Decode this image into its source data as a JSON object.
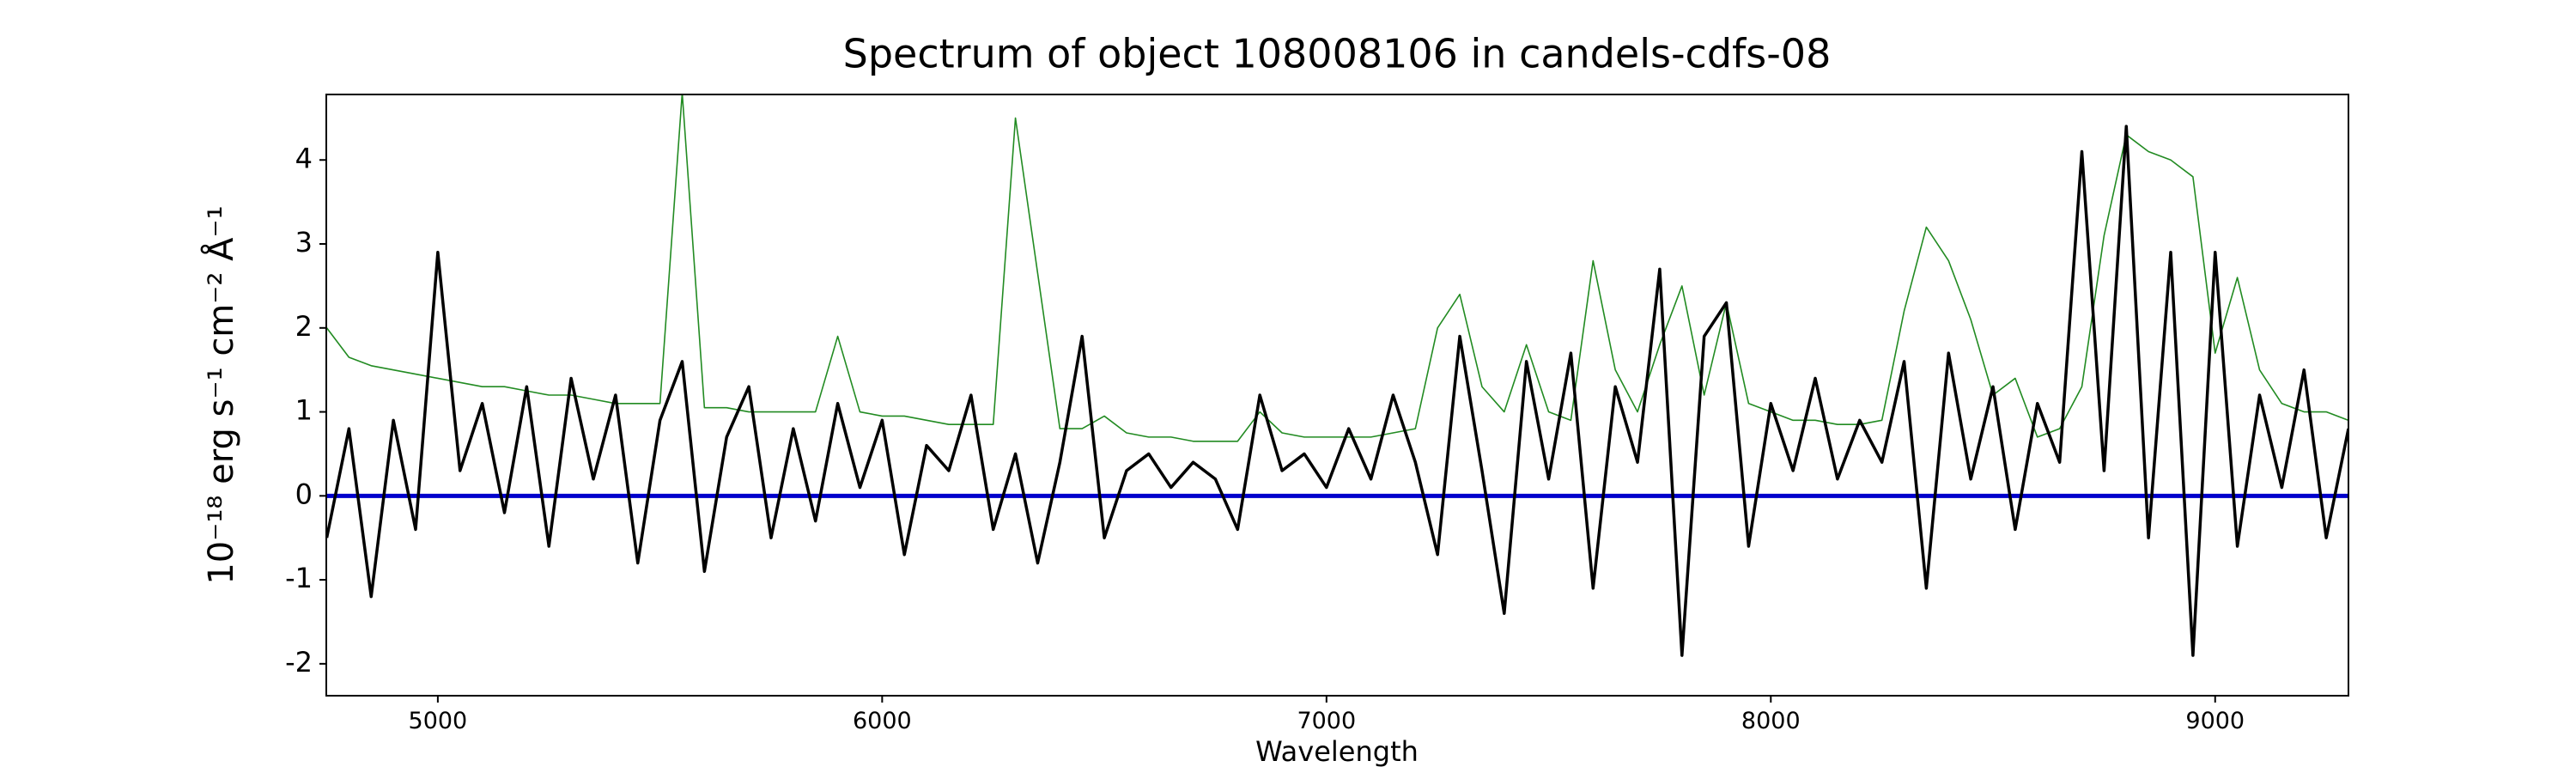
{
  "chart_data": {
    "type": "line",
    "title": "Spectrum of object 108008106 in candels-cdfs-08",
    "x_label": "Wavelength",
    "y_label": "10⁻¹⁸ erg s⁻¹ cm⁻² Å⁻¹",
    "xlim": [
      4749,
      9300
    ],
    "ylim": [
      -2.38,
      4.78
    ],
    "xticks": [
      5000,
      6000,
      7000,
      8000,
      9000
    ],
    "yticks": [
      -2,
      -1,
      0,
      1,
      2,
      3,
      4
    ],
    "x": [
      4750,
      4800,
      4850,
      4900,
      4950,
      5000,
      5050,
      5100,
      5150,
      5200,
      5250,
      5300,
      5350,
      5400,
      5450,
      5500,
      5550,
      5600,
      5650,
      5700,
      5750,
      5800,
      5850,
      5900,
      5950,
      6000,
      6050,
      6100,
      6150,
      6200,
      6250,
      6300,
      6350,
      6400,
      6450,
      6500,
      6550,
      6600,
      6650,
      6700,
      6750,
      6800,
      6850,
      6900,
      6950,
      7000,
      7050,
      7100,
      7150,
      7200,
      7250,
      7300,
      7350,
      7400,
      7450,
      7500,
      7550,
      7600,
      7650,
      7700,
      7750,
      7800,
      7850,
      7900,
      7950,
      8000,
      8050,
      8100,
      8150,
      8200,
      8250,
      8300,
      8350,
      8400,
      8450,
      8500,
      8550,
      8600,
      8650,
      8700,
      8750,
      8800,
      8850,
      8900,
      8950,
      9000,
      9050,
      9100,
      9150,
      9200,
      9250,
      9300
    ],
    "series": [
      {
        "color": "#228b22",
        "width": 1.6,
        "values": [
          2.0,
          1.65,
          1.55,
          1.5,
          1.45,
          1.4,
          1.35,
          1.3,
          1.3,
          1.25,
          1.2,
          1.2,
          1.15,
          1.1,
          1.1,
          1.1,
          4.8,
          1.05,
          1.05,
          1.0,
          1.0,
          1.0,
          1.0,
          1.9,
          1.0,
          0.95,
          0.95,
          0.9,
          0.85,
          0.85,
          0.85,
          4.5,
          2.65,
          0.8,
          0.8,
          0.95,
          0.75,
          0.7,
          0.7,
          0.65,
          0.65,
          0.65,
          1.0,
          0.75,
          0.7,
          0.7,
          0.7,
          0.7,
          0.75,
          0.8,
          2.0,
          2.4,
          1.3,
          1.0,
          1.8,
          1.0,
          0.9,
          2.8,
          1.5,
          1.0,
          1.8,
          2.5,
          1.2,
          2.3,
          1.1,
          1.0,
          0.9,
          0.9,
          0.85,
          0.85,
          0.9,
          2.2,
          3.2,
          2.8,
          2.1,
          1.2,
          1.4,
          0.7,
          0.8,
          1.3,
          3.1,
          4.3,
          4.1,
          4.0,
          3.8,
          1.7,
          2.6,
          1.5,
          1.1,
          1.0,
          1.0,
          0.9
        ]
      },
      {
        "color": "#0000cc",
        "width": 5,
        "values": [
          0,
          0,
          0,
          0,
          0,
          0,
          0,
          0,
          0,
          0,
          0,
          0,
          0,
          0,
          0,
          0,
          0,
          0,
          0,
          0,
          0,
          0,
          0,
          0,
          0,
          0,
          0,
          0,
          0,
          0,
          0,
          0,
          0,
          0,
          0,
          0,
          0,
          0,
          0,
          0,
          0,
          0,
          0,
          0,
          0,
          0,
          0,
          0,
          0,
          0,
          0,
          0,
          0,
          0,
          0,
          0,
          0,
          0,
          0,
          0,
          0,
          0,
          0,
          0,
          0,
          0,
          0,
          0,
          0,
          0,
          0,
          0,
          0,
          0,
          0,
          0,
          0,
          0,
          0,
          0,
          0,
          0,
          0,
          0,
          0,
          0,
          0,
          0,
          0,
          0,
          0,
          0
        ]
      },
      {
        "color": "#000000",
        "width": 3.5,
        "values": [
          -0.5,
          0.8,
          -1.2,
          0.9,
          -0.4,
          2.9,
          0.3,
          1.1,
          -0.2,
          1.3,
          -0.6,
          1.4,
          0.2,
          1.2,
          -0.8,
          0.9,
          1.6,
          -0.9,
          0.7,
          1.3,
          -0.5,
          0.8,
          -0.3,
          1.1,
          0.1,
          0.9,
          -0.7,
          0.6,
          0.3,
          1.2,
          -0.4,
          0.5,
          -0.8,
          0.4,
          1.9,
          -0.5,
          0.3,
          0.5,
          0.1,
          0.4,
          0.2,
          -0.4,
          1.2,
          0.3,
          0.5,
          0.1,
          0.8,
          0.2,
          1.2,
          0.4,
          -0.7,
          1.9,
          0.3,
          -1.4,
          1.6,
          0.2,
          1.7,
          -1.1,
          1.3,
          0.4,
          2.7,
          -1.9,
          1.9,
          2.3,
          -0.6,
          1.1,
          0.3,
          1.4,
          0.2,
          0.9,
          0.4,
          1.6,
          -1.1,
          1.7,
          0.2,
          1.3,
          -0.4,
          1.1,
          0.4,
          4.1,
          0.3,
          4.4,
          -0.5,
          2.9,
          -1.9,
          2.9,
          -0.6,
          1.2,
          0.1,
          1.5,
          -0.5,
          0.8
        ]
      }
    ]
  }
}
